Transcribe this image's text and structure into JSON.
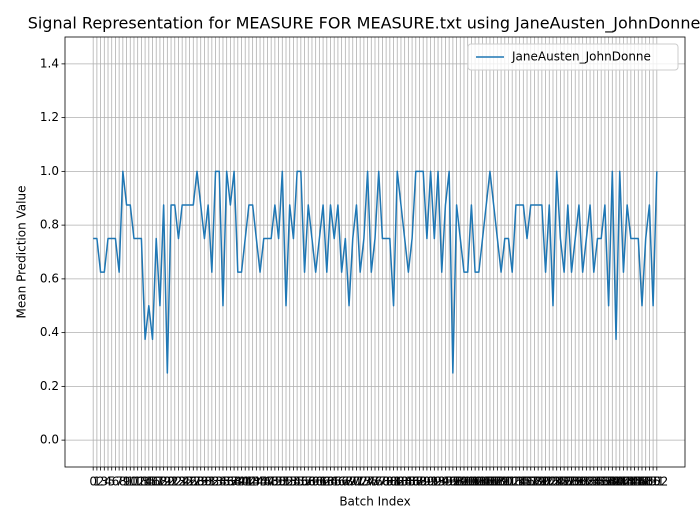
{
  "chart_data": {
    "type": "line",
    "title": "Signal Representation for MEASURE FOR MEASURE.txt using JaneAusten_JohnDonne",
    "xlabel": "Batch Index",
    "ylabel": "Mean Prediction Value",
    "x": [
      0,
      1,
      2,
      3,
      4,
      5,
      6,
      7,
      8,
      9,
      10,
      11,
      12,
      13,
      14,
      15,
      16,
      17,
      18,
      19,
      20,
      21,
      22,
      23,
      24,
      25,
      26,
      27,
      28,
      29,
      30,
      31,
      32,
      33,
      34,
      35,
      36,
      37,
      38,
      39,
      40,
      41,
      42,
      43,
      44,
      45,
      46,
      47,
      48,
      49,
      50,
      51,
      52,
      53,
      54,
      55,
      56,
      57,
      58,
      59,
      60,
      61,
      62,
      63,
      64,
      65,
      66,
      67,
      68,
      69,
      70,
      71,
      72,
      73,
      74,
      75,
      76,
      77,
      78,
      79,
      80,
      81,
      82,
      83,
      84,
      85,
      86,
      87,
      88,
      89,
      90,
      91,
      92,
      93,
      94,
      95,
      96,
      97,
      98,
      99,
      100,
      101,
      102,
      103,
      104,
      105,
      106,
      107,
      108,
      109,
      110,
      111,
      112,
      113,
      114,
      115,
      116,
      117,
      118,
      119,
      120,
      121,
      122,
      123,
      124,
      125,
      126,
      127,
      128,
      129,
      130,
      131,
      132,
      133,
      134,
      135,
      136,
      137,
      138,
      139,
      140,
      141,
      142,
      143,
      144,
      145,
      146,
      147,
      148,
      149,
      150,
      151,
      152
    ],
    "series": [
      {
        "name": "JaneAusten_JohnDonne",
        "color": "#1f77b4",
        "values": [
          0.75,
          0.75,
          0.625,
          0.625,
          0.75,
          0.75,
          0.75,
          0.625,
          1.0,
          0.875,
          0.875,
          0.75,
          0.75,
          0.75,
          0.375,
          0.5,
          0.375,
          0.75,
          0.5,
          0.875,
          0.25,
          0.875,
          0.875,
          0.75,
          0.875,
          0.875,
          0.875,
          0.875,
          1.0,
          0.875,
          0.75,
          0.875,
          0.625,
          1.0,
          1.0,
          0.5,
          1.0,
          0.875,
          1.0,
          0.625,
          0.625,
          0.75,
          0.875,
          0.875,
          0.75,
          0.625,
          0.75,
          0.75,
          0.75,
          0.875,
          0.75,
          1.0,
          0.5,
          0.875,
          0.75,
          1.0,
          1.0,
          0.625,
          0.875,
          0.75,
          0.625,
          0.75,
          0.875,
          0.625,
          0.875,
          0.75,
          0.875,
          0.625,
          0.75,
          0.5,
          0.75,
          0.875,
          0.625,
          0.75,
          1.0,
          0.625,
          0.75,
          1.0,
          0.75,
          0.75,
          0.75,
          0.5,
          1.0,
          0.875,
          0.75,
          0.625,
          0.75,
          1.0,
          1.0,
          1.0,
          0.75,
          1.0,
          0.75,
          1.0,
          0.625,
          0.875,
          1.0,
          0.25,
          0.875,
          0.75,
          0.625,
          0.625,
          0.875,
          0.625,
          0.625,
          0.75,
          0.875,
          1.0,
          0.875,
          0.75,
          0.625,
          0.75,
          0.75,
          0.625,
          0.875,
          0.875,
          0.875,
          0.75,
          0.875,
          0.875,
          0.875,
          0.875,
          0.625,
          0.875,
          0.5,
          1.0,
          0.75,
          0.625,
          0.875,
          0.625,
          0.75,
          0.875,
          0.625,
          0.75,
          0.875,
          0.625,
          0.75,
          0.75,
          0.875,
          0.5,
          1.0,
          0.375,
          1.0,
          0.625,
          0.875,
          0.75,
          0.75,
          0.75,
          0.5,
          0.75,
          0.875,
          0.5,
          1.0
        ]
      }
    ],
    "xlim": [
      -7.6,
      159.6
    ],
    "xticks": [
      0,
      1,
      2,
      3,
      4,
      5,
      6,
      7,
      8,
      9,
      10,
      11,
      12,
      13,
      14,
      15,
      16,
      17,
      18,
      19,
      20,
      21,
      22,
      23,
      24,
      25,
      26,
      27,
      28,
      29,
      30,
      31,
      32,
      33,
      34,
      35,
      36,
      37,
      38,
      39,
      40,
      41,
      42,
      43,
      44,
      45,
      46,
      47,
      48,
      49,
      50,
      51,
      52,
      53,
      54,
      55,
      56,
      57,
      58,
      59,
      60,
      61,
      62,
      63,
      64,
      65,
      66,
      67,
      68,
      69,
      70,
      71,
      72,
      73,
      74,
      75,
      76,
      77,
      78,
      79,
      80,
      81,
      82,
      83,
      84,
      85,
      86,
      87,
      88,
      89,
      90,
      91,
      92,
      93,
      94,
      95,
      96,
      97,
      98,
      99,
      100,
      101,
      102,
      103,
      104,
      105,
      106,
      107,
      108,
      109,
      110,
      111,
      112,
      113,
      114,
      115,
      116,
      117,
      118,
      119,
      120,
      121,
      122,
      123,
      124,
      125,
      126,
      127,
      128,
      129,
      130,
      131,
      132,
      133,
      134,
      135,
      136,
      137,
      138,
      139,
      140,
      141,
      142,
      143,
      144,
      145,
      146,
      147,
      148,
      149,
      150,
      151,
      152
    ],
    "ylim": [
      -0.1,
      1.5
    ],
    "yticks": [
      {
        "value": 0,
        "label": "0.0"
      },
      0.2,
      0.4,
      0.6,
      0.8,
      {
        "value": 1,
        "label": "1.0"
      },
      1.2,
      1.4
    ],
    "grid": true,
    "legend": "upper right"
  }
}
